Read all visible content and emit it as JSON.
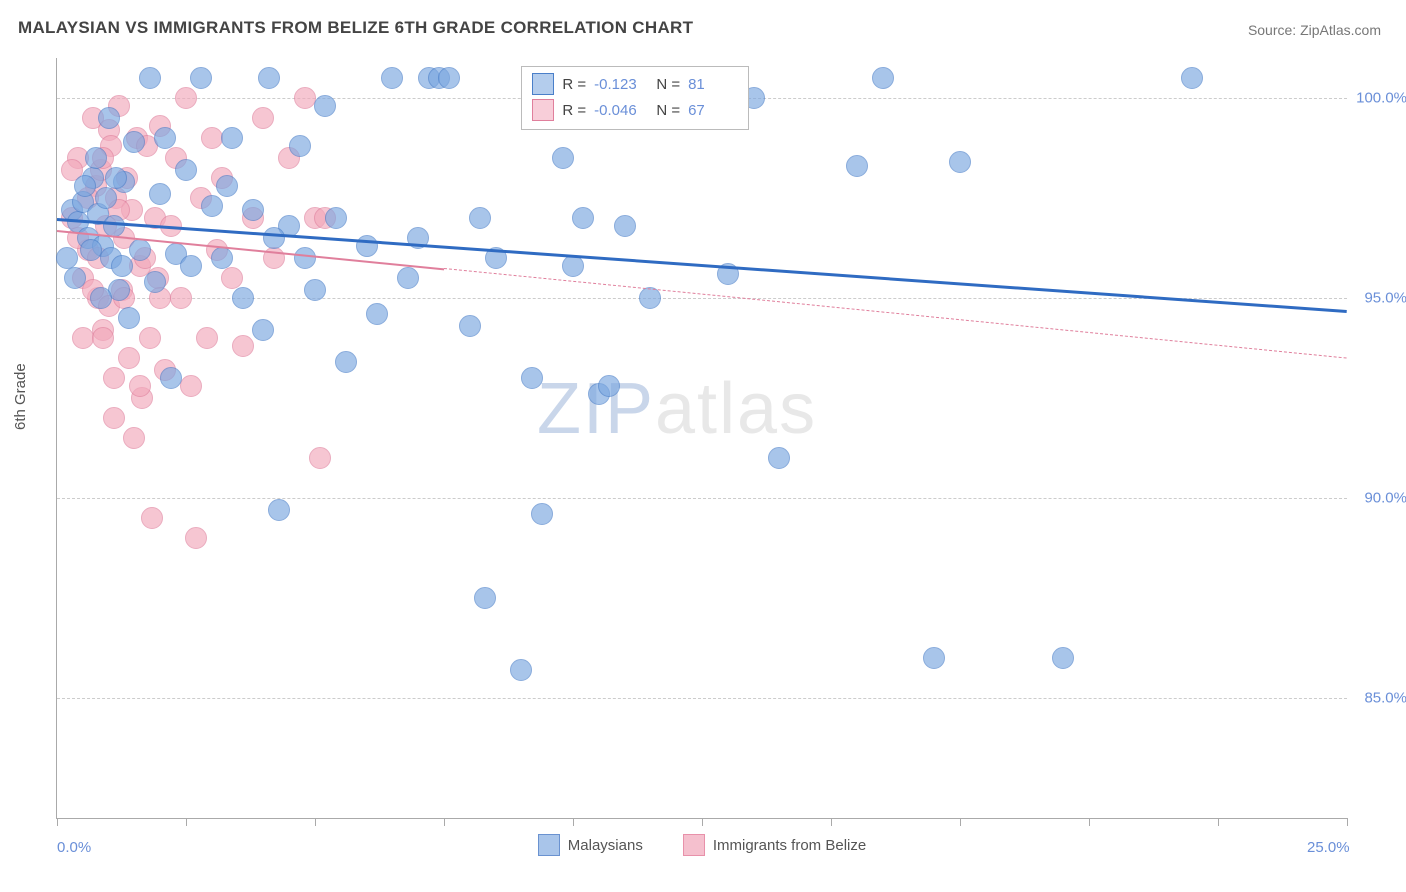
{
  "title": "MALAYSIAN VS IMMIGRANTS FROM BELIZE 6TH GRADE CORRELATION CHART",
  "source": "Source: ZipAtlas.com",
  "y_axis_label": "6th Grade",
  "watermark": {
    "part1": "ZIP",
    "part2": "atlas"
  },
  "chart": {
    "type": "scatter",
    "background_color": "#ffffff",
    "grid_color": "#cccccc",
    "axis_color": "#aaaaaa",
    "tick_label_color": "#6a8fd8",
    "xlim": [
      0,
      25
    ],
    "ylim": [
      82,
      101
    ],
    "y_ticks": [
      85,
      90,
      95,
      100
    ],
    "y_tick_labels": [
      "85.0%",
      "90.0%",
      "95.0%",
      "100.0%"
    ],
    "x_ticks": [
      0,
      2.5,
      5,
      7.5,
      10,
      12.5,
      15,
      17.5,
      20,
      22.5,
      25
    ],
    "x_axis_labels": [
      {
        "x": 0,
        "text": "0.0%"
      },
      {
        "x": 25,
        "text": "25.0%"
      }
    ],
    "point_radius": 10,
    "point_fill_opacity": 0.35,
    "point_stroke_width": 1,
    "series": [
      {
        "name": "Malaysians",
        "fill_color": "#7ba7e0",
        "stroke_color": "#4a7fc9",
        "stats": {
          "R": "-0.123",
          "N": "81"
        },
        "trend": {
          "x1": 0,
          "y1": 97.0,
          "x2": 25,
          "y2": 94.7,
          "color": "#2f6bc2",
          "width": 2.5,
          "solid_until_x": 25
        },
        "points": [
          [
            0.3,
            97.2
          ],
          [
            0.4,
            96.9
          ],
          [
            0.5,
            97.4
          ],
          [
            0.6,
            96.5
          ],
          [
            0.7,
            98.0
          ],
          [
            0.8,
            97.1
          ],
          [
            0.9,
            96.3
          ],
          [
            1.0,
            99.5
          ],
          [
            1.1,
            96.8
          ],
          [
            1.2,
            95.2
          ],
          [
            1.3,
            97.9
          ],
          [
            1.4,
            94.5
          ],
          [
            1.5,
            98.9
          ],
          [
            1.6,
            96.2
          ],
          [
            1.8,
            100.5
          ],
          [
            1.9,
            95.4
          ],
          [
            2.0,
            97.6
          ],
          [
            2.1,
            99.0
          ],
          [
            2.2,
            93.0
          ],
          [
            2.3,
            96.1
          ],
          [
            2.5,
            98.2
          ],
          [
            2.6,
            95.8
          ],
          [
            2.8,
            100.5
          ],
          [
            3.0,
            97.3
          ],
          [
            3.2,
            96.0
          ],
          [
            3.4,
            99.0
          ],
          [
            3.6,
            95.0
          ],
          [
            3.8,
            97.2
          ],
          [
            4.0,
            94.2
          ],
          [
            4.1,
            100.5
          ],
          [
            4.3,
            89.7
          ],
          [
            4.5,
            96.8
          ],
          [
            4.7,
            98.8
          ],
          [
            5.0,
            95.2
          ],
          [
            5.2,
            99.8
          ],
          [
            5.4,
            97.0
          ],
          [
            5.6,
            93.4
          ],
          [
            6.0,
            96.3
          ],
          [
            6.2,
            94.6
          ],
          [
            6.5,
            100.5
          ],
          [
            6.8,
            95.5
          ],
          [
            7.2,
            100.5
          ],
          [
            7.4,
            100.5
          ],
          [
            7.6,
            100.5
          ],
          [
            8.0,
            94.3
          ],
          [
            8.2,
            97.0
          ],
          [
            8.3,
            87.5
          ],
          [
            8.5,
            96.0
          ],
          [
            9.0,
            85.7
          ],
          [
            9.2,
            93.0
          ],
          [
            9.4,
            89.6
          ],
          [
            9.8,
            98.5
          ],
          [
            10.0,
            95.8
          ],
          [
            10.2,
            97.0
          ],
          [
            10.5,
            92.6
          ],
          [
            10.7,
            92.8
          ],
          [
            11.0,
            96.8
          ],
          [
            11.5,
            95.0
          ],
          [
            13.0,
            95.6
          ],
          [
            13.5,
            100.0
          ],
          [
            14.0,
            91.0
          ],
          [
            15.5,
            98.3
          ],
          [
            16.0,
            100.5
          ],
          [
            17.0,
            86.0
          ],
          [
            17.5,
            98.4
          ],
          [
            19.5,
            86.0
          ],
          [
            22.0,
            100.5
          ],
          [
            0.2,
            96.0
          ],
          [
            0.35,
            95.5
          ],
          [
            0.55,
            97.8
          ],
          [
            0.65,
            96.2
          ],
          [
            0.75,
            98.5
          ],
          [
            0.85,
            95.0
          ],
          [
            0.95,
            97.5
          ],
          [
            1.05,
            96.0
          ],
          [
            1.15,
            98.0
          ],
          [
            1.25,
            95.8
          ],
          [
            3.3,
            97.8
          ],
          [
            4.2,
            96.5
          ],
          [
            4.8,
            96.0
          ],
          [
            7.0,
            96.5
          ]
        ]
      },
      {
        "name": "Immigrants from Belize",
        "fill_color": "#f2a8bb",
        "stroke_color": "#e07f9c",
        "stats": {
          "R": "-0.046",
          "N": "67"
        },
        "trend": {
          "x1": 0,
          "y1": 96.7,
          "x2": 25,
          "y2": 93.5,
          "color": "#e07f9c",
          "width": 2,
          "solid_until_x": 7.5
        },
        "points": [
          [
            0.3,
            97.0
          ],
          [
            0.4,
            98.5
          ],
          [
            0.5,
            95.5
          ],
          [
            0.6,
            96.2
          ],
          [
            0.7,
            99.5
          ],
          [
            0.75,
            97.8
          ],
          [
            0.8,
            95.0
          ],
          [
            0.85,
            98.2
          ],
          [
            0.9,
            94.2
          ],
          [
            0.95,
            96.8
          ],
          [
            1.0,
            99.2
          ],
          [
            1.05,
            98.8
          ],
          [
            1.1,
            93.0
          ],
          [
            1.15,
            97.5
          ],
          [
            1.2,
            99.8
          ],
          [
            1.25,
            95.2
          ],
          [
            1.3,
            96.5
          ],
          [
            1.35,
            98.0
          ],
          [
            1.4,
            93.5
          ],
          [
            1.45,
            97.2
          ],
          [
            1.5,
            91.5
          ],
          [
            1.55,
            99.0
          ],
          [
            1.6,
            95.8
          ],
          [
            1.65,
            92.5
          ],
          [
            1.7,
            96.0
          ],
          [
            1.75,
            98.8
          ],
          [
            1.8,
            94.0
          ],
          [
            1.85,
            89.5
          ],
          [
            1.9,
            97.0
          ],
          [
            1.95,
            95.5
          ],
          [
            2.0,
            99.3
          ],
          [
            2.1,
            93.2
          ],
          [
            2.2,
            96.8
          ],
          [
            2.3,
            98.5
          ],
          [
            2.4,
            95.0
          ],
          [
            2.5,
            100.0
          ],
          [
            2.6,
            92.8
          ],
          [
            2.7,
            89.0
          ],
          [
            2.8,
            97.5
          ],
          [
            2.9,
            94.0
          ],
          [
            3.0,
            99.0
          ],
          [
            3.1,
            96.2
          ],
          [
            3.2,
            98.0
          ],
          [
            3.4,
            95.5
          ],
          [
            3.6,
            93.8
          ],
          [
            3.8,
            97.0
          ],
          [
            4.0,
            99.5
          ],
          [
            4.2,
            96.0
          ],
          [
            4.5,
            98.5
          ],
          [
            4.8,
            100.0
          ],
          [
            5.0,
            97.0
          ],
          [
            5.1,
            91.0
          ],
          [
            5.2,
            97.0
          ],
          [
            0.3,
            98.2
          ],
          [
            0.4,
            96.5
          ],
          [
            0.5,
            94.0
          ],
          [
            0.6,
            97.5
          ],
          [
            0.7,
            95.2
          ],
          [
            0.8,
            96.0
          ],
          [
            0.9,
            98.5
          ],
          [
            1.0,
            94.8
          ],
          [
            1.1,
            92.0
          ],
          [
            1.2,
            97.2
          ],
          [
            1.3,
            95.0
          ],
          [
            0.9,
            94.0
          ],
          [
            1.6,
            92.8
          ],
          [
            2.0,
            95.0
          ]
        ]
      }
    ],
    "stats_box": {
      "x": 9.0,
      "y_top": 100.8
    },
    "legend": [
      {
        "label": "Malaysians",
        "fill": "#a9c5ea",
        "stroke": "#6a92d0"
      },
      {
        "label": "Immigrants from Belize",
        "fill": "#f5c0ce",
        "stroke": "#e891aa"
      }
    ]
  }
}
